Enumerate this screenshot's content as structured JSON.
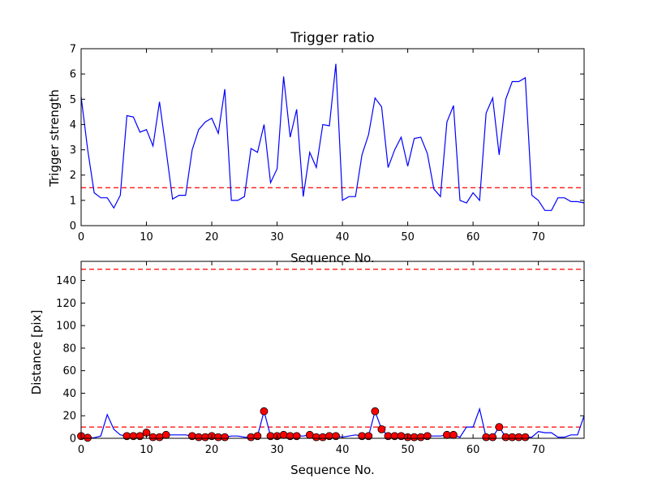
{
  "chart_data": [
    {
      "type": "line",
      "title": "Trigger ratio",
      "xlabel": "Sequence No.",
      "ylabel": "Trigger strength",
      "xlim": [
        0,
        77
      ],
      "ylim": [
        0,
        7
      ],
      "xticks": [
        0,
        10,
        20,
        30,
        40,
        50,
        60,
        70
      ],
      "yticks": [
        0,
        1,
        2,
        3,
        4,
        5,
        6,
        7
      ],
      "grid": false,
      "colors": {
        "line": "#0000ff",
        "threshold": "#ff0000"
      },
      "threshold": 1.5,
      "series": [
        {
          "x": [
            0,
            1,
            2,
            3,
            4,
            5,
            6,
            7,
            8,
            9,
            10,
            11,
            12,
            13,
            14,
            15,
            16,
            17,
            18,
            19,
            20,
            21,
            22,
            23,
            24,
            25,
            26,
            27,
            28,
            29,
            30,
            31,
            32,
            33,
            34,
            35,
            36,
            37,
            38,
            39,
            40,
            41,
            42,
            43,
            44,
            45,
            46,
            47,
            48,
            49,
            50,
            51,
            52,
            53,
            54,
            55,
            56,
            57,
            58,
            59,
            60,
            61,
            62,
            63,
            64,
            65,
            66,
            67,
            68,
            69,
            70,
            71,
            72,
            73,
            74,
            75,
            76,
            77
          ],
          "y": [
            5.1,
            3.0,
            1.3,
            1.1,
            1.1,
            0.7,
            1.2,
            4.35,
            4.3,
            3.7,
            3.8,
            3.15,
            4.9,
            3.0,
            1.05,
            1.2,
            1.2,
            3.0,
            3.8,
            4.1,
            4.25,
            3.65,
            5.4,
            1.0,
            1.0,
            1.15,
            3.05,
            2.9,
            4.0,
            1.7,
            2.25,
            5.9,
            3.5,
            4.6,
            1.15,
            2.9,
            2.3,
            4.0,
            3.95,
            6.4,
            1.0,
            1.15,
            1.15,
            2.8,
            3.6,
            5.05,
            4.7,
            2.3,
            3.0,
            3.5,
            2.35,
            3.45,
            3.5,
            2.85,
            1.45,
            1.15,
            4.1,
            4.75,
            1.0,
            0.9,
            1.3,
            1.0,
            4.45,
            5.05,
            2.8,
            5.0,
            5.7,
            5.7,
            5.85,
            1.2,
            1.0,
            0.6,
            0.6,
            1.1,
            1.1,
            0.95,
            0.95,
            0.9
          ]
        }
      ]
    },
    {
      "type": "line",
      "title": "",
      "xlabel": "Sequence No.",
      "ylabel": "Distance [pix]",
      "xlim": [
        0,
        77
      ],
      "ylim": [
        0,
        157
      ],
      "xticks": [
        0,
        10,
        20,
        30,
        40,
        50,
        60,
        70
      ],
      "yticks": [
        0,
        20,
        40,
        60,
        80,
        100,
        120,
        140
      ],
      "grid": false,
      "colors": {
        "line": "#0000ff",
        "threshold": "#ff0000",
        "marker": "#ff0000",
        "marker_edge": "#000000"
      },
      "thresholds": [
        150,
        10
      ],
      "series": [
        {
          "x": [
            0,
            1,
            2,
            3,
            4,
            5,
            6,
            7,
            8,
            9,
            10,
            11,
            12,
            13,
            14,
            15,
            16,
            17,
            18,
            19,
            20,
            21,
            22,
            23,
            24,
            25,
            26,
            27,
            28,
            29,
            30,
            31,
            32,
            33,
            34,
            35,
            36,
            37,
            38,
            39,
            40,
            41,
            42,
            43,
            44,
            45,
            46,
            47,
            48,
            49,
            50,
            51,
            52,
            53,
            54,
            55,
            56,
            57,
            58,
            59,
            60,
            61,
            62,
            63,
            64,
            65,
            66,
            67,
            68,
            69,
            70,
            71,
            72,
            73,
            74,
            75,
            76,
            77
          ],
          "y": [
            2,
            0.5,
            0.5,
            2,
            21,
            8,
            3,
            2,
            2,
            2,
            5,
            1,
            1,
            3,
            3,
            3,
            3,
            2,
            1,
            1,
            2,
            1,
            1,
            2,
            2,
            1,
            1,
            2,
            24,
            2,
            2,
            3,
            2,
            2,
            2,
            3,
            1,
            1,
            2,
            2,
            1,
            2,
            3,
            2,
            2,
            24,
            8,
            2,
            2,
            2,
            1,
            1,
            1,
            2,
            2,
            2,
            3,
            3,
            1,
            10,
            10,
            26,
            1,
            1,
            10,
            1,
            1,
            1,
            1,
            1,
            6,
            5,
            5,
            1,
            1,
            3,
            3,
            20
          ]
        },
        {
          "x": [
            0,
            1,
            7,
            8,
            9,
            10,
            11,
            12,
            13,
            17,
            18,
            19,
            20,
            21,
            22,
            26,
            27,
            28,
            29,
            30,
            31,
            32,
            33,
            35,
            36,
            37,
            38,
            39,
            43,
            44,
            45,
            46,
            47,
            48,
            49,
            50,
            51,
            52,
            53,
            56,
            57,
            62,
            63,
            64,
            65,
            66,
            67,
            68
          ],
          "y": [
            2,
            0.5,
            2,
            2,
            2,
            5,
            1,
            1,
            3,
            2,
            1,
            1,
            2,
            1,
            1,
            1,
            2,
            24,
            2,
            2,
            3,
            2,
            2,
            3,
            1,
            1,
            2,
            2,
            2,
            2,
            24,
            8,
            2,
            2,
            2,
            1,
            1,
            1,
            2,
            3,
            3,
            1,
            1,
            10,
            1,
            1,
            1,
            1
          ]
        }
      ]
    }
  ]
}
